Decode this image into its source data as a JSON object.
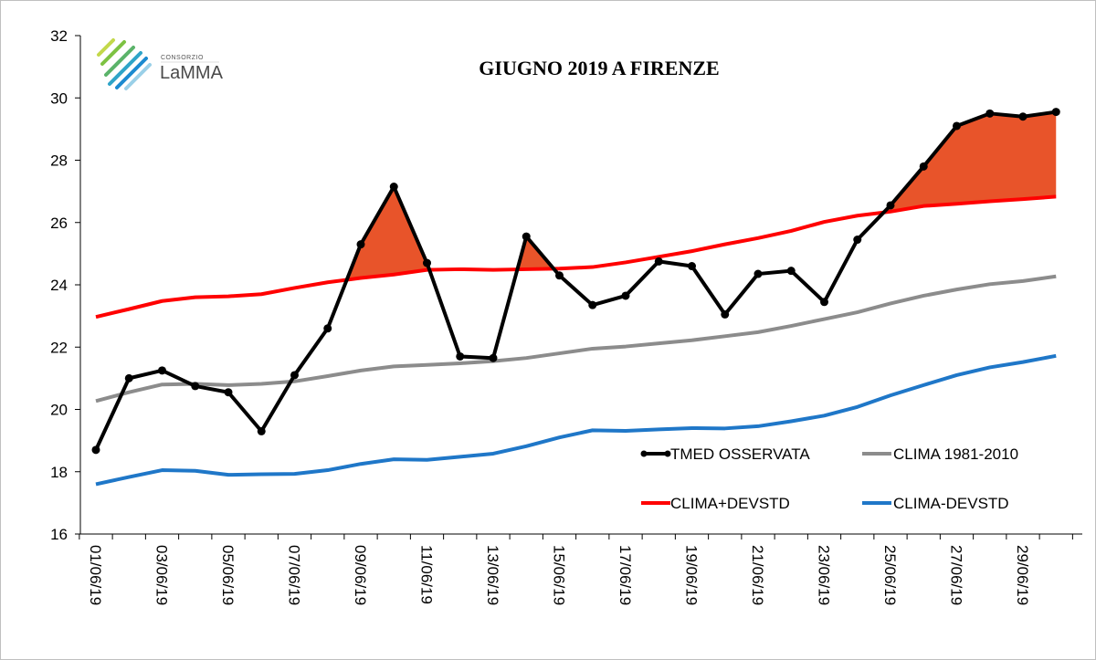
{
  "logo": {
    "top_text": "CONSORZIO",
    "name": "LaMMA"
  },
  "chart_data": {
    "type": "line",
    "title": "GIUGNO 2019 A FIRENZE",
    "xlabel": "",
    "ylabel": "",
    "ylim": [
      16,
      32
    ],
    "yticks": [
      16,
      18,
      20,
      22,
      24,
      26,
      28,
      30,
      32
    ],
    "grid": false,
    "legend_position": "bottom-right",
    "x": [
      "01/06/19",
      "02/06/19",
      "03/06/19",
      "04/06/19",
      "05/06/19",
      "06/06/19",
      "07/06/19",
      "08/06/19",
      "09/06/19",
      "10/06/19",
      "11/06/19",
      "12/06/19",
      "13/06/19",
      "14/06/19",
      "15/06/19",
      "16/06/19",
      "17/06/19",
      "18/06/19",
      "19/06/19",
      "20/06/19",
      "21/06/19",
      "22/06/19",
      "23/06/19",
      "24/06/19",
      "25/06/19",
      "26/06/19",
      "27/06/19",
      "28/06/19",
      "29/06/19",
      "30/06/19"
    ],
    "x_tick_labels": [
      "01/06/19",
      "03/06/19",
      "05/06/19",
      "07/06/19",
      "09/06/19",
      "11/06/19",
      "13/06/19",
      "15/06/19",
      "17/06/19",
      "19/06/19",
      "21/06/19",
      "23/06/19",
      "25/06/19",
      "27/06/19",
      "29/06/19"
    ],
    "series": [
      {
        "name": "TMED OSSERVATA",
        "color": "#000000",
        "markers": true,
        "values": [
          18.7,
          21.0,
          21.25,
          20.75,
          20.55,
          19.3,
          21.1,
          22.6,
          25.3,
          27.15,
          24.7,
          21.7,
          21.65,
          25.55,
          24.3,
          23.35,
          23.65,
          24.75,
          24.6,
          23.05,
          24.35,
          24.45,
          23.45,
          25.45,
          26.55,
          27.8,
          29.1,
          29.5,
          29.4,
          29.55
        ]
      },
      {
        "name": "CLIMA 1981-2010",
        "color": "#8c8c8c",
        "markers": false,
        "values": [
          20.27,
          20.55,
          20.8,
          20.82,
          20.78,
          20.82,
          20.9,
          21.07,
          21.25,
          21.38,
          21.43,
          21.48,
          21.55,
          21.65,
          21.8,
          21.95,
          22.02,
          22.12,
          22.22,
          22.35,
          22.48,
          22.68,
          22.9,
          23.12,
          23.4,
          23.65,
          23.85,
          24.02,
          24.12,
          24.27
        ]
      },
      {
        "name": "CLIMA+DEVSTD",
        "color": "#ff0000",
        "markers": false,
        "values": [
          22.97,
          23.22,
          23.48,
          23.6,
          23.63,
          23.7,
          23.9,
          24.08,
          24.22,
          24.33,
          24.48,
          24.5,
          24.48,
          24.5,
          24.52,
          24.57,
          24.72,
          24.9,
          25.08,
          25.3,
          25.5,
          25.73,
          26.02,
          26.22,
          26.35,
          26.53,
          26.6,
          26.68,
          26.75,
          26.83
        ]
      },
      {
        "name": "CLIMA-DEVSTD",
        "color": "#1f77c8",
        "markers": false,
        "values": [
          17.6,
          17.83,
          18.05,
          18.03,
          17.9,
          17.92,
          17.93,
          18.05,
          18.25,
          18.4,
          18.38,
          18.48,
          18.58,
          18.82,
          19.1,
          19.33,
          19.31,
          19.36,
          19.4,
          19.39,
          19.46,
          19.62,
          19.8,
          20.08,
          20.45,
          20.78,
          21.1,
          21.35,
          21.52,
          21.72
        ]
      }
    ],
    "shading": {
      "description_color": "#e8542a",
      "between": [
        "TMED OSSERVATA",
        "CLIMA+DEVSTD"
      ],
      "where": "above"
    }
  }
}
